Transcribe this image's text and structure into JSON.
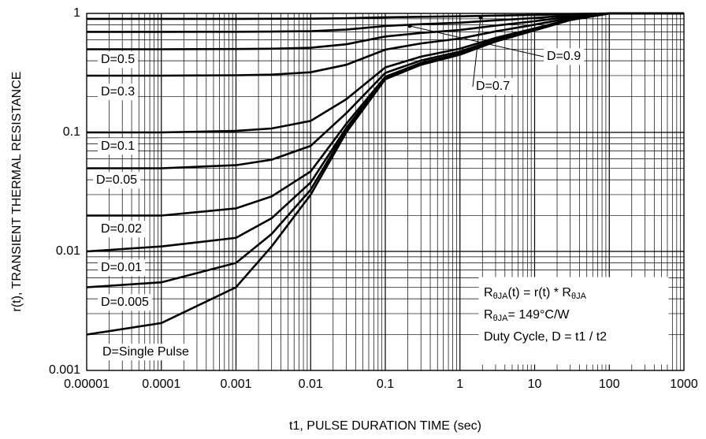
{
  "chart_data": {
    "type": "line",
    "xlabel": "t1, PULSE DURATION TIME (sec)",
    "ylabel": "r(t), TRANSIENT THERMAL RESISTANCE",
    "xscale": "log",
    "yscale": "log",
    "grid": true,
    "color": "#000000",
    "xlim": [
      1e-05,
      1000
    ],
    "ylim": [
      0.001,
      1
    ],
    "xticks": [
      {
        "value": 1e-05,
        "label": "0.00001"
      },
      0.0001,
      0.001,
      0.01,
      0.1,
      1,
      10,
      100,
      1000
    ],
    "yticks": [
      0.001,
      0.01,
      0.1,
      1
    ],
    "x": [
      1e-05,
      0.0001,
      0.001,
      0.003,
      0.01,
      0.03,
      0.1,
      0.3,
      1,
      3,
      10,
      30,
      100,
      1000
    ],
    "series": [
      {
        "name": "D=0.9",
        "values": [
          0.9,
          0.9,
          0.9,
          0.901,
          0.903,
          0.91,
          0.928,
          0.937,
          0.945,
          0.958,
          0.972,
          0.988,
          1,
          1
        ]
      },
      {
        "name": "D=0.7",
        "values": [
          0.7,
          0.7,
          0.701,
          0.703,
          0.708,
          0.73,
          0.784,
          0.811,
          0.835,
          0.874,
          0.916,
          0.964,
          1,
          1
        ]
      },
      {
        "name": "D=0.5",
        "values": [
          0.5,
          0.5,
          0.502,
          0.505,
          0.514,
          0.55,
          0.64,
          0.685,
          0.725,
          0.79,
          0.86,
          0.94,
          1,
          1
        ]
      },
      {
        "name": "D=0.3",
        "values": [
          0.3,
          0.3,
          0.302,
          0.306,
          0.32,
          0.37,
          0.496,
          0.559,
          0.615,
          0.706,
          0.804,
          0.916,
          1,
          1
        ]
      },
      {
        "name": "D=0.1",
        "values": [
          0.1,
          0.1,
          0.103,
          0.108,
          0.125,
          0.19,
          0.352,
          0.433,
          0.505,
          0.622,
          0.748,
          0.892,
          1,
          1
        ]
      },
      {
        "name": "D=0.05",
        "values": [
          0.05,
          0.05,
          0.053,
          0.059,
          0.077,
          0.145,
          0.316,
          0.402,
          0.478,
          0.601,
          0.734,
          0.886,
          1,
          1
        ]
      },
      {
        "name": "D=0.02",
        "values": [
          0.02,
          0.02,
          0.023,
          0.029,
          0.047,
          0.118,
          0.294,
          0.383,
          0.461,
          0.588,
          0.726,
          0.882,
          1,
          1
        ]
      },
      {
        "name": "D=0.01",
        "values": [
          0.01,
          0.011,
          0.013,
          0.019,
          0.038,
          0.109,
          0.287,
          0.376,
          0.456,
          0.584,
          0.723,
          0.881,
          1,
          1
        ]
      },
      {
        "name": "D=0.005",
        "values": [
          0.005,
          0.0055,
          0.008,
          0.014,
          0.033,
          0.105,
          0.284,
          0.373,
          0.453,
          0.582,
          0.721,
          0.88,
          1,
          1
        ]
      },
      {
        "name": "D=Single Pulse",
        "values": [
          0.002,
          0.0025,
          0.005,
          0.011,
          0.03,
          0.1,
          0.28,
          0.37,
          0.45,
          0.58,
          0.72,
          0.88,
          1,
          1
        ]
      }
    ],
    "annotations": [
      {
        "parts": [
          "R",
          "θJA",
          "(t) = r(t) * R",
          "θJA"
        ]
      },
      {
        "parts": [
          "R",
          "θJA",
          "= 149°C/W"
        ]
      },
      {
        "parts": [
          "Duty Cycle, D = t1 / t2"
        ]
      }
    ]
  }
}
